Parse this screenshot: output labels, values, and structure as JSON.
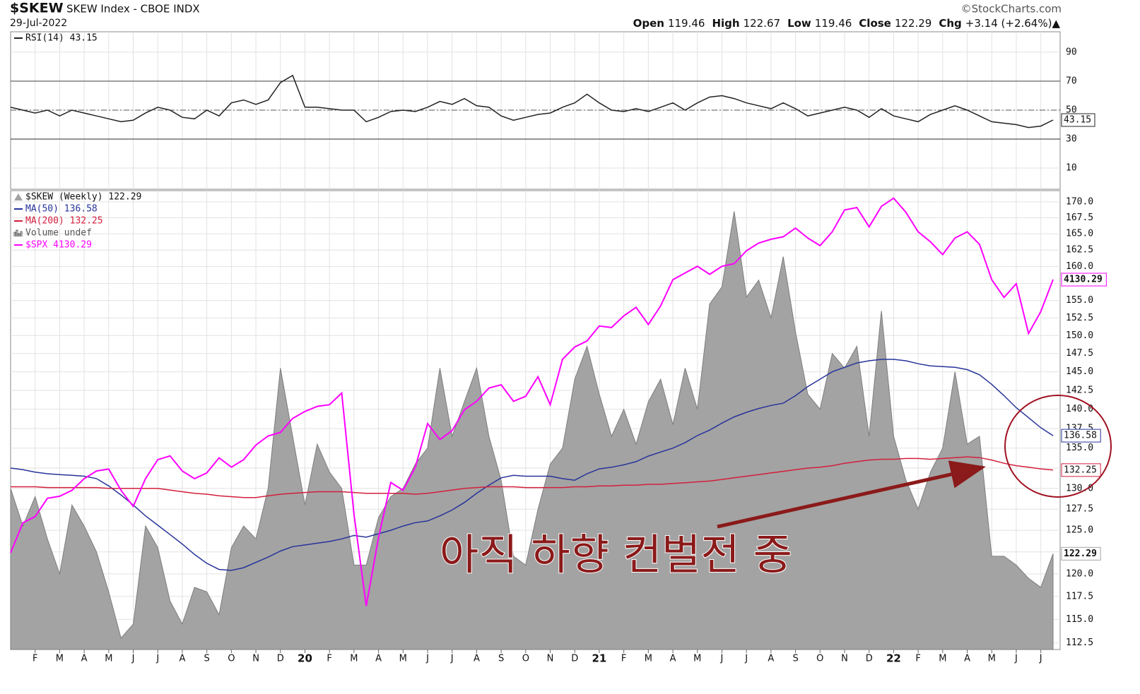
{
  "header": {
    "symbol": "$SKEW",
    "name": "SKEW Index - CBOE INDX",
    "source": "©StockCharts.com",
    "date": "29-Jul-2022",
    "quote": [
      {
        "label": "Open",
        "value": "119.46"
      },
      {
        "label": "High",
        "value": "122.67"
      },
      {
        "label": "Low",
        "value": "119.46"
      },
      {
        "label": "Close",
        "value": "122.29"
      },
      {
        "label": "Chg",
        "value": "+3.14 (+2.64%)▲"
      }
    ]
  },
  "chart_data": [
    {
      "type": "line",
      "ylim": [
        -4.6,
        104.1
      ],
      "yticks": [
        10,
        30,
        50,
        70,
        90
      ],
      "grid": true,
      "solid_levels": [
        30,
        70
      ],
      "dashed_levels": [
        50
      ],
      "series": [
        {
          "name": "RSI(14) 43.15",
          "color": "#222222",
          "last_label": "43.15",
          "values": [
            52,
            50,
            48,
            50,
            46,
            50,
            48,
            46,
            44,
            42,
            43,
            48,
            52,
            50,
            45,
            44,
            50,
            46,
            55,
            57,
            54,
            57,
            69,
            74,
            52,
            52,
            51,
            50,
            50,
            42,
            45,
            49,
            50,
            49,
            52,
            56,
            54,
            58,
            53,
            52,
            46,
            43,
            45,
            47,
            48,
            52,
            55,
            61,
            55,
            50,
            49,
            51,
            49,
            52,
            55,
            50,
            55,
            59,
            60,
            58,
            55,
            53,
            51,
            55,
            51,
            46,
            48,
            50,
            52,
            50,
            45,
            51,
            46,
            44,
            42,
            47,
            50,
            53,
            50,
            46,
            42,
            41,
            40,
            38,
            39,
            43.15
          ]
        }
      ]
    },
    {
      "type": "line",
      "log": true,
      "grid": true,
      "ylim": [
        111.8,
        171.8
      ],
      "y2lim": [
        2127,
        4845
      ],
      "yticks": [
        112.5,
        {
          "value": 115,
          "label": "115.0"
        },
        117.5,
        {
          "value": 120,
          "label": "120.0"
        },
        122.5,
        {
          "value": 125,
          "label": "125.0"
        },
        127.5,
        {
          "value": 130,
          "label": "130.0"
        },
        132.5,
        {
          "value": 135,
          "label": "135.0"
        },
        137.5,
        {
          "value": 140,
          "label": "140.0"
        },
        142.5,
        {
          "value": 145,
          "label": "145.0"
        },
        147.5,
        {
          "value": 150,
          "label": "150.0"
        },
        152.5,
        {
          "value": 155,
          "label": "155.0"
        },
        157.5,
        {
          "value": 160,
          "label": "160.0"
        },
        162.5,
        {
          "value": 165,
          "label": "165.0"
        },
        167.5,
        {
          "value": 170,
          "label": "170.0"
        }
      ],
      "categories": [
        null,
        null,
        "F",
        null,
        "M",
        null,
        "A",
        null,
        "M",
        null,
        "J",
        null,
        "J",
        null,
        "A",
        null,
        "S",
        null,
        "O",
        null,
        "N",
        null,
        "D",
        null,
        "20",
        null,
        "F",
        null,
        "M",
        null,
        "A",
        null,
        "M",
        null,
        "J",
        null,
        "J",
        null,
        "A",
        null,
        "S",
        null,
        "O",
        null,
        "N",
        null,
        "D",
        null,
        "21",
        null,
        "F",
        null,
        "M",
        null,
        "A",
        null,
        "M",
        null,
        "J",
        null,
        "J",
        null,
        "A",
        null,
        "S",
        null,
        "O",
        null,
        "N",
        null,
        "D",
        null,
        "22",
        null,
        "F",
        null,
        "M",
        null,
        "A",
        null,
        "M",
        null,
        "J",
        null,
        "J",
        null
      ],
      "series": [
        {
          "name": "$SKEW (Weekly) 122.29",
          "style": "area",
          "color": "#a3a3a3",
          "last_label": "122.29",
          "values": [
            130,
            125.5,
            129,
            124,
            120,
            128,
            125.5,
            122.5,
            118,
            113,
            114.5,
            125.5,
            123,
            117,
            114.5,
            118.5,
            118,
            115.5,
            123,
            125.5,
            124,
            130,
            145.5,
            136.5,
            128,
            135.5,
            132,
            130,
            121,
            121,
            126.5,
            129,
            130,
            133,
            135,
            145.5,
            136.5,
            141,
            145.5,
            136.5,
            131,
            122,
            121,
            127.5,
            133,
            135,
            144,
            148.5,
            142,
            136.5,
            140,
            135.5,
            141,
            144,
            138,
            145.5,
            140,
            154.5,
            157,
            168.5,
            155.5,
            158,
            152.5,
            161.5,
            150.5,
            142,
            140,
            147.5,
            145.5,
            148.5,
            136.5,
            153.5,
            136.5,
            131,
            127.5,
            132,
            135,
            145,
            135.5,
            136.5,
            122,
            122,
            121,
            119.5,
            118.5,
            122.29
          ]
        },
        {
          "name": "MA(50) 136.58",
          "style": "line",
          "color": "#27349a",
          "last_label": "136.58",
          "values": [
            132.5,
            132.3,
            132.0,
            131.8,
            131.7,
            131.6,
            131.5,
            131.2,
            130.3,
            129.2,
            128.0,
            126.7,
            125.6,
            124.5,
            123.4,
            122.2,
            121.2,
            120.5,
            120.4,
            120.7,
            121.3,
            121.9,
            122.6,
            123.1,
            123.3,
            123.5,
            123.7,
            124.0,
            124.4,
            124.2,
            124.6,
            125.0,
            125.5,
            125.9,
            126.1,
            126.7,
            127.4,
            128.3,
            129.4,
            130.4,
            131.3,
            131.6,
            131.5,
            131.5,
            131.5,
            131.2,
            131.0,
            131.8,
            132.4,
            132.6,
            132.9,
            133.3,
            134.0,
            134.5,
            135.0,
            135.7,
            136.6,
            137.3,
            138.2,
            139.0,
            139.6,
            140.1,
            140.5,
            140.8,
            141.8,
            143.0,
            144.0,
            145.0,
            145.6,
            146.2,
            146.5,
            146.7,
            146.7,
            146.5,
            146.1,
            145.8,
            145.7,
            145.6,
            145.3,
            144.6,
            143.3,
            141.8,
            140.2,
            138.9,
            137.6,
            136.58
          ]
        },
        {
          "name": "MA(200) 132.25",
          "style": "line",
          "color": "#d31f3c",
          "last_label": "132.25",
          "values": [
            130.2,
            130.2,
            130.2,
            130.1,
            130.1,
            130.1,
            130.1,
            130.1,
            130.0,
            130.0,
            130.0,
            130.0,
            130.0,
            129.8,
            129.6,
            129.4,
            129.3,
            129.1,
            129.0,
            128.9,
            128.9,
            129.1,
            129.3,
            129.4,
            129.5,
            129.6,
            129.6,
            129.6,
            129.5,
            129.4,
            129.4,
            129.4,
            129.4,
            129.3,
            129.4,
            129.6,
            129.8,
            130.0,
            130.1,
            130.2,
            130.2,
            130.2,
            130.1,
            130.1,
            130.1,
            130.1,
            130.2,
            130.2,
            130.3,
            130.3,
            130.4,
            130.4,
            130.5,
            130.5,
            130.6,
            130.7,
            130.8,
            130.9,
            131.1,
            131.3,
            131.5,
            131.7,
            131.9,
            132.1,
            132.3,
            132.5,
            132.6,
            132.8,
            133.1,
            133.3,
            133.5,
            133.6,
            133.6,
            133.7,
            133.7,
            133.6,
            133.7,
            133.8,
            133.9,
            133.8,
            133.5,
            133.1,
            132.8,
            132.6,
            132.4,
            132.25
          ]
        },
        {
          "name": "Volume undef",
          "style": "legend-only",
          "color": "#555555"
        },
        {
          "name": "$SPX 4130.29",
          "style": "line",
          "axis": "y2",
          "color": "#ff00ff",
          "last_label": "4130.29",
          "values": [
            2530,
            2670,
            2700,
            2790,
            2800,
            2830,
            2890,
            2930,
            2940,
            2830,
            2750,
            2890,
            2990,
            3010,
            2930,
            2890,
            2920,
            3000,
            2950,
            2990,
            3070,
            3120,
            3140,
            3220,
            3260,
            3290,
            3300,
            3370,
            2710,
            2300,
            2600,
            2870,
            2830,
            2950,
            3190,
            3100,
            3150,
            3270,
            3320,
            3400,
            3420,
            3320,
            3350,
            3470,
            3300,
            3580,
            3660,
            3700,
            3800,
            3790,
            3870,
            3930,
            3810,
            3940,
            4130,
            4180,
            4230,
            4170,
            4230,
            4250,
            4350,
            4410,
            4440,
            4460,
            4530,
            4450,
            4390,
            4500,
            4680,
            4700,
            4540,
            4710,
            4780,
            4660,
            4500,
            4420,
            4320,
            4450,
            4500,
            4400,
            4130,
            4000,
            4100,
            3750,
            3900,
            4130.29
          ]
        }
      ],
      "annotation": "아직 하향 컨벌전 중"
    }
  ]
}
